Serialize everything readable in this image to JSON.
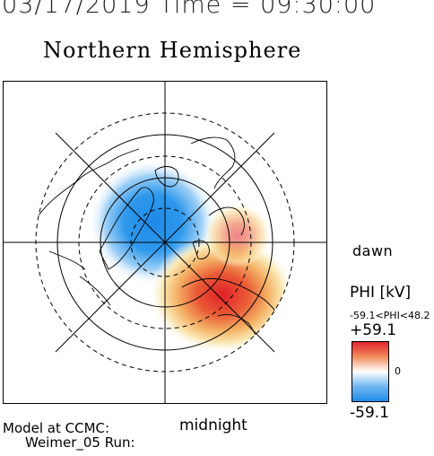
{
  "header": {
    "line": "03/17/2019 Time = 09:30:00",
    "hemisphere_title": "Northern Hemisphere"
  },
  "map": {
    "directions": {
      "dawn": "dawn",
      "midnight": "midnight"
    }
  },
  "colorbar": {
    "quantity_label": "PHI [kV]",
    "range_text": "-59.1<PHI<48.2",
    "max_label": "+59.1",
    "zero_label": "0",
    "min_label": "-59.1",
    "max_color": "#e0202a",
    "mid_color": "#ffffff",
    "min_color": "#1e8ae8"
  },
  "footer": {
    "model_line1": "Model at CCMC:",
    "model_line2": "Weimer_05 Run:"
  }
}
